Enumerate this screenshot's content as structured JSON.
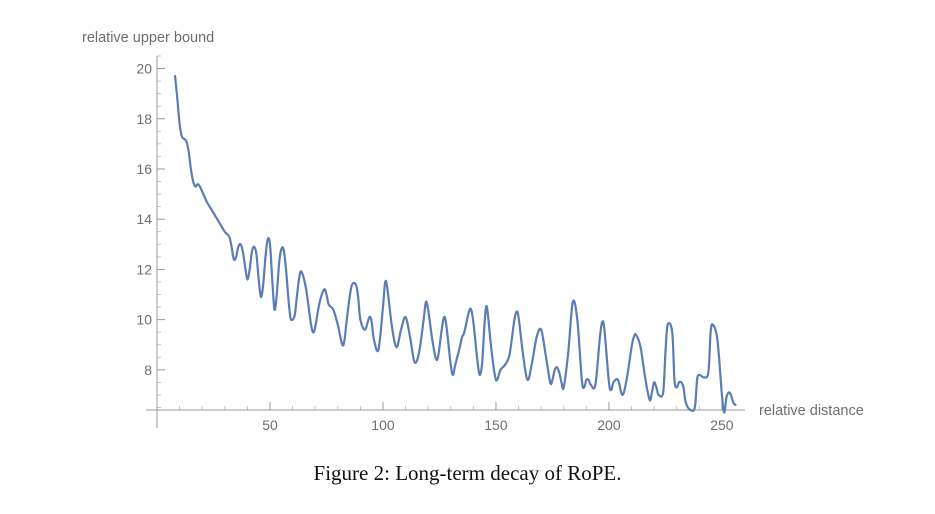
{
  "caption": "Figure 2: Long-term decay of RoPE.",
  "chart_data": {
    "type": "line",
    "title": "",
    "xlabel": "relative distance",
    "ylabel": "relative upper bound",
    "xlim": [
      0,
      258
    ],
    "ylim": [
      6.4,
      20.5
    ],
    "x_axis_at_y": 6.4,
    "x_ticks": [
      50,
      100,
      150,
      200,
      250
    ],
    "y_ticks": [
      8,
      10,
      12,
      14,
      16,
      18,
      20
    ],
    "grid": false,
    "legend": "none",
    "line_color": "#5b7db5",
    "series": [
      {
        "x": [
          8,
          9,
          10,
          11,
          12,
          13,
          14,
          15,
          16,
          17,
          18,
          19,
          20,
          22,
          24,
          26,
          28,
          30,
          32,
          33,
          34,
          35,
          36,
          37,
          38,
          39,
          40,
          41,
          42,
          43,
          44,
          45,
          46,
          47,
          48,
          49,
          50,
          51,
          52,
          53,
          54,
          55,
          56,
          57,
          58,
          59,
          60,
          61,
          62,
          63,
          64,
          66,
          68,
          69,
          70,
          72,
          74,
          75,
          76,
          78,
          80,
          82,
          83,
          84,
          86,
          88,
          89,
          90,
          92,
          94,
          95,
          96,
          98,
          100,
          101,
          102,
          104,
          106,
          108,
          110,
          112,
          114,
          116,
          118,
          119,
          120,
          122,
          124,
          126,
          127,
          128,
          130,
          131,
          132,
          134,
          135,
          136,
          138,
          139,
          140,
          142,
          143,
          144,
          145,
          146,
          148,
          150,
          152,
          154,
          156,
          158,
          159,
          160,
          162,
          164,
          166,
          168,
          170,
          172,
          174,
          175,
          176,
          177,
          178,
          179,
          180,
          182,
          184,
          186,
          188,
          189,
          190,
          191,
          192,
          194,
          196,
          197,
          198,
          200,
          201,
          202,
          204,
          206,
          208,
          210,
          211,
          212,
          214,
          216,
          218,
          219,
          220,
          221,
          222,
          224,
          225,
          226,
          228,
          229,
          230,
          231,
          232,
          233,
          234,
          236,
          238,
          239,
          240,
          242,
          244,
          245,
          246,
          248,
          250,
          251,
          252,
          253,
          254,
          255,
          256
        ],
        "y": [
          19.7,
          18.8,
          17.8,
          17.3,
          17.2,
          17.1,
          16.7,
          16.0,
          15.5,
          15.3,
          15.4,
          15.3,
          15.1,
          14.7,
          14.4,
          14.1,
          13.8,
          13.5,
          13.3,
          12.9,
          12.4,
          12.5,
          12.9,
          13.0,
          12.7,
          12.1,
          11.6,
          12.0,
          12.7,
          12.9,
          12.6,
          11.6,
          10.9,
          11.4,
          12.5,
          13.2,
          13.0,
          11.6,
          10.4,
          11.0,
          12.2,
          12.8,
          12.8,
          12.1,
          11.0,
          10.1,
          10.0,
          10.2,
          11.0,
          11.7,
          11.9,
          11.2,
          9.9,
          9.5,
          9.7,
          10.7,
          11.2,
          11.0,
          10.6,
          10.4,
          9.8,
          9.0,
          9.2,
          10.0,
          11.3,
          11.4,
          10.9,
          10.0,
          9.6,
          10.1,
          9.9,
          9.2,
          8.8,
          10.5,
          11.5,
          11.2,
          9.7,
          8.9,
          9.6,
          10.1,
          9.3,
          8.3,
          8.7,
          10.0,
          10.7,
          10.4,
          9.1,
          8.4,
          9.6,
          10.1,
          9.8,
          8.2,
          7.8,
          8.2,
          8.9,
          9.3,
          9.5,
          10.3,
          10.4,
          9.9,
          8.2,
          7.8,
          8.4,
          9.9,
          10.5,
          8.8,
          7.6,
          8.0,
          8.2,
          8.6,
          9.9,
          10.3,
          10.1,
          8.6,
          7.6,
          8.3,
          9.3,
          9.6,
          8.6,
          7.5,
          7.6,
          8.0,
          8.1,
          7.9,
          7.5,
          7.3,
          8.7,
          10.7,
          10.0,
          7.6,
          7.3,
          7.6,
          7.6,
          7.4,
          7.4,
          9.3,
          9.9,
          9.6,
          7.5,
          7.2,
          7.5,
          7.6,
          7.0,
          7.7,
          8.9,
          9.3,
          9.4,
          8.9,
          7.7,
          6.8,
          7.1,
          7.5,
          7.3,
          7.0,
          7.1,
          8.7,
          9.8,
          9.5,
          7.6,
          7.3,
          7.5,
          7.5,
          7.3,
          6.7,
          6.4,
          6.5,
          7.6,
          7.8,
          7.7,
          7.9,
          9.5,
          9.8,
          9.2,
          7.0,
          6.3,
          6.9,
          7.1,
          7.0,
          6.7,
          6.6
        ]
      }
    ]
  }
}
